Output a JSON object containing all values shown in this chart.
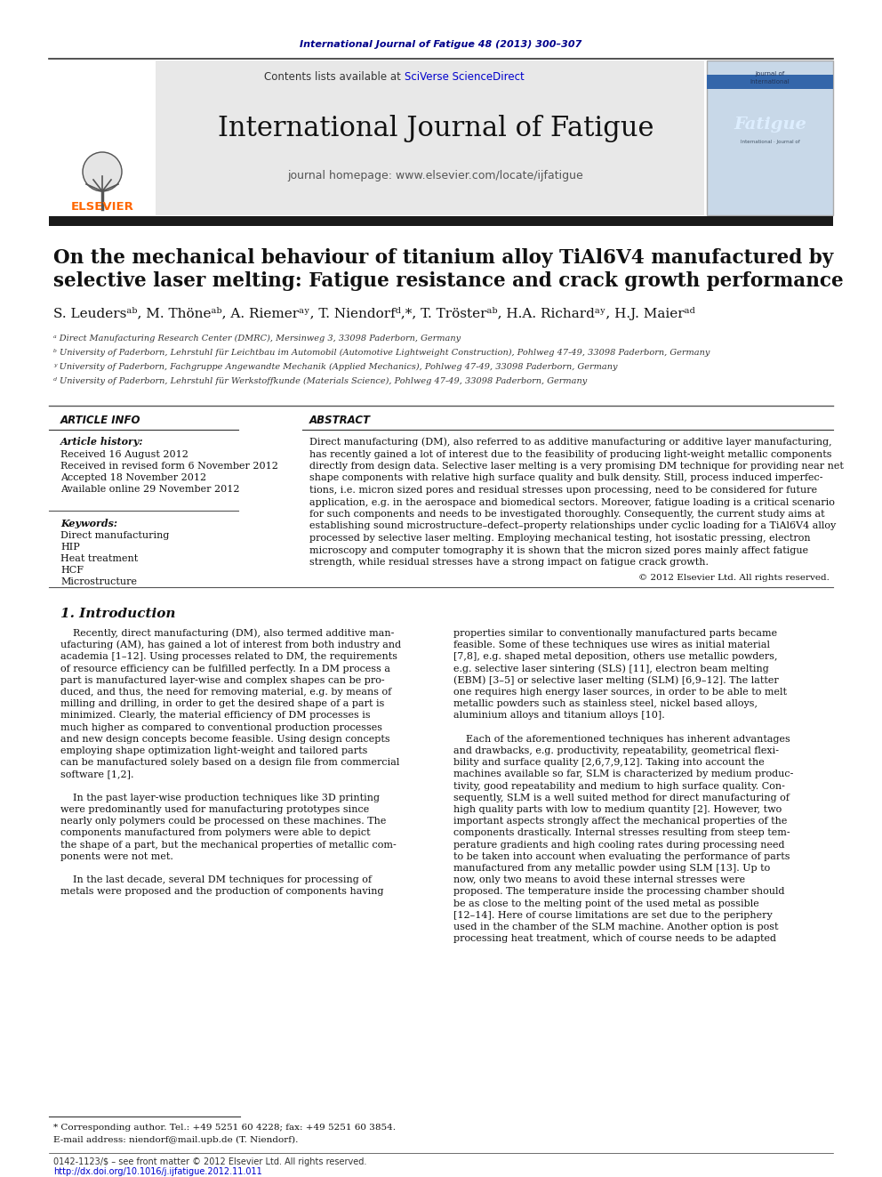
{
  "page_bg": "#ffffff",
  "top_journal_ref": "International Journal of Fatigue 48 (2013) 300–307",
  "top_journal_ref_color": "#00008B",
  "header_bg": "#E8E8E8",
  "header_contents_text": "Contents lists available at ",
  "header_sciverse": "SciVerse ScienceDirect",
  "header_sciverse_color": "#0000CC",
  "header_journal_name": "International Journal of Fatigue",
  "header_homepage": "journal homepage: www.elsevier.com/locate/ijfatigue",
  "thick_bar_color": "#1a1a1a",
  "paper_title_line1": "On the mechanical behaviour of titanium alloy TiAl6V4 manufactured by",
  "paper_title_line2": "selective laser melting: Fatigue resistance and crack growth performance",
  "authors_line": "S. Leudersᵃᵇ, M. Thöneᵃᵇ, A. Riemerᵃʸ, T. Niendorfᵈ,*, T. Trösterᵃᵇ, H.A. Richardᵃʸ, H.J. Maierᵃᵈ",
  "affil_a": "ᵃ Direct Manufacturing Research Center (DMRC), Mersinweg 3, 33098 Paderborn, Germany",
  "affil_b": "ᵇ University of Paderborn, Lehrstuhl für Leichtbau im Automobil (Automotive Lightweight Construction), Pohlweg 47-49, 33098 Paderborn, Germany",
  "affil_c": "ʸ University of Paderborn, Fachgruppe Angewandte Mechanik (Applied Mechanics), Pohlweg 47-49, 33098 Paderborn, Germany",
  "affil_d": "ᵈ University of Paderborn, Lehrstuhl für Werkstoffkunde (Materials Science), Pohlweg 47-49, 33098 Paderborn, Germany",
  "article_info_title": "ARTICLE INFO",
  "abstract_title": "ABSTRACT",
  "article_history_label": "Article history:",
  "history_lines": [
    "Received 16 August 2012",
    "Received in revised form 6 November 2012",
    "Accepted 18 November 2012",
    "Available online 29 November 2012"
  ],
  "keywords_label": "Keywords:",
  "keywords": [
    "Direct manufacturing",
    "HIP",
    "Heat treatment",
    "HCF",
    "Microstructure"
  ],
  "abstract_lines": [
    "Direct manufacturing (DM), also referred to as additive manufacturing or additive layer manufacturing,",
    "has recently gained a lot of interest due to the feasibility of producing light-weight metallic components",
    "directly from design data. Selective laser melting is a very promising DM technique for providing near net",
    "shape components with relative high surface quality and bulk density. Still, process induced imperfec-",
    "tions, i.e. micron sized pores and residual stresses upon processing, need to be considered for future",
    "application, e.g. in the aerospace and biomedical sectors. Moreover, fatigue loading is a critical scenario",
    "for such components and needs to be investigated thoroughly. Consequently, the current study aims at",
    "establishing sound microstructure–defect–property relationships under cyclic loading for a TiAl6V4 alloy",
    "processed by selective laser melting. Employing mechanical testing, hot isostatic pressing, electron",
    "microscopy and computer tomography it is shown that the micron sized pores mainly affect fatigue",
    "strength, while residual stresses have a strong impact on fatigue crack growth."
  ],
  "copyright_line": "© 2012 Elsevier Ltd. All rights reserved.",
  "section1_title": "1. Introduction",
  "intro_col1": [
    "    Recently, direct manufacturing (DM), also termed additive man-",
    "ufacturing (AM), has gained a lot of interest from both industry and",
    "academia [1–12]. Using processes related to DM, the requirements",
    "of resource efficiency can be fulfilled perfectly. In a DM process a",
    "part is manufactured layer-wise and complex shapes can be pro-",
    "duced, and thus, the need for removing material, e.g. by means of",
    "milling and drilling, in order to get the desired shape of a part is",
    "minimized. Clearly, the material efficiency of DM processes is",
    "much higher as compared to conventional production processes",
    "and new design concepts become feasible. Using design concepts",
    "employing shape optimization light-weight and tailored parts",
    "can be manufactured solely based on a design file from commercial",
    "software [1,2].",
    "",
    "    In the past layer-wise production techniques like 3D printing",
    "were predominantly used for manufacturing prototypes since",
    "nearly only polymers could be processed on these machines. The",
    "components manufactured from polymers were able to depict",
    "the shape of a part, but the mechanical properties of metallic com-",
    "ponents were not met.",
    "",
    "    In the last decade, several DM techniques for processing of",
    "metals were proposed and the production of components having"
  ],
  "intro_col2": [
    "properties similar to conventionally manufactured parts became",
    "feasible. Some of these techniques use wires as initial material",
    "[7,8], e.g. shaped metal deposition, others use metallic powders,",
    "e.g. selective laser sintering (SLS) [11], electron beam melting",
    "(EBM) [3–5] or selective laser melting (SLM) [6,9–12]. The latter",
    "one requires high energy laser sources, in order to be able to melt",
    "metallic powders such as stainless steel, nickel based alloys,",
    "aluminium alloys and titanium alloys [10].",
    "",
    "    Each of the aforementioned techniques has inherent advantages",
    "and drawbacks, e.g. productivity, repeatability, geometrical flexi-",
    "bility and surface quality [2,6,7,9,12]. Taking into account the",
    "machines available so far, SLM is characterized by medium produc-",
    "tivity, good repeatability and medium to high surface quality. Con-",
    "sequently, SLM is a well suited method for direct manufacturing of",
    "high quality parts with low to medium quantity [2]. However, two",
    "important aspects strongly affect the mechanical properties of the",
    "components drastically. Internal stresses resulting from steep tem-",
    "perature gradients and high cooling rates during processing need",
    "to be taken into account when evaluating the performance of parts",
    "manufactured from any metallic powder using SLM [13]. Up to",
    "now, only two means to avoid these internal stresses were",
    "proposed. The temperature inside the processing chamber should",
    "be as close to the melting point of the used metal as possible",
    "[12–14]. Here of course limitations are set due to the periphery",
    "used in the chamber of the SLM machine. Another option is post",
    "processing heat treatment, which of course needs to be adapted"
  ],
  "footnote_star": "* Corresponding author. Tel.: +49 5251 60 4228; fax: +49 5251 60 3854.",
  "footnote_email": "E-mail address: niendorf@mail.upb.de (T. Niendorf).",
  "footer_issn": "0142-1123/$ – see front matter © 2012 Elsevier Ltd. All rights reserved.",
  "footer_doi": "http://dx.doi.org/10.1016/j.ijfatigue.2012.11.011",
  "footer_doi_color": "#0000CC"
}
